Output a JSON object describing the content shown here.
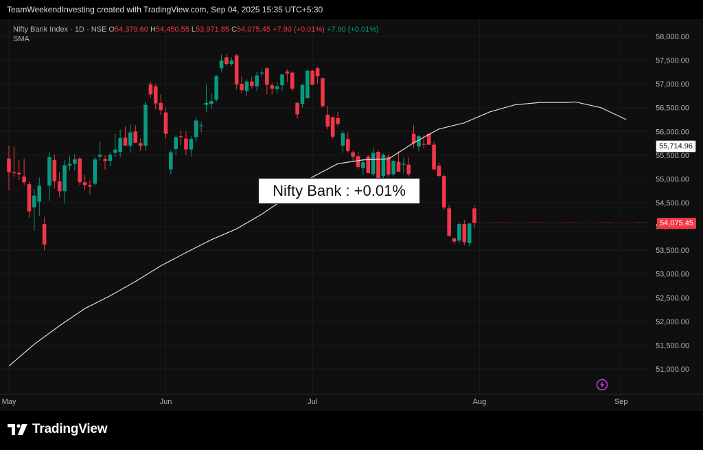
{
  "watermark": "TeamWeekendInvesting created with TradingView.com, Sep 04, 2025 15:35 UTC+5:30",
  "legend": {
    "symbol": "Nifty Bank Index · 1D · NSE",
    "open_label": "O",
    "open": "54,379.60",
    "high_label": "H",
    "high": "54,450.55",
    "low_label": "L",
    "low": "53,971.85",
    "close_label": "C",
    "close": "54,075.45",
    "change": "+7.90 (+0.01%)",
    "indicator_change": "+7.90 (+0.01%)",
    "indicator": "SMA"
  },
  "annotation": "Nifty Bank : +0.01%",
  "sma_price_tag": "55,714.96",
  "last_price_tag": "54,075.45",
  "brand": "TradingView",
  "colors": {
    "up": "#089981",
    "down": "#f23645",
    "sma": "#e0e0e0",
    "background": "#0f0f0f"
  },
  "chart_data": {
    "type": "candlestick",
    "title": "Nifty Bank Index · 1D · NSE",
    "y_axis_side": "right",
    "ylim": [
      50600,
      58300
    ],
    "y_ticks": [
      "58,000.00",
      "57,500.00",
      "57,000.00",
      "56,500.00",
      "56,000.00",
      "55,500.00",
      "55,000.00",
      "54,500.00",
      "54,000.00",
      "53,500.00",
      "53,000.00",
      "52,500.00",
      "52,000.00",
      "51,500.00",
      "51,000.00"
    ],
    "y_tick_values": [
      58000,
      57500,
      57000,
      56500,
      56000,
      55500,
      55000,
      54500,
      54000,
      53500,
      53000,
      52500,
      52000,
      51500,
      51000
    ],
    "x_ticks": [
      "May",
      "Jun",
      "Jul",
      "Aug",
      "Sep"
    ],
    "x_tick_bar_index": [
      0,
      31,
      60,
      93,
      121
    ],
    "candles": [
      {
        "o": 55430,
        "h": 55700,
        "l": 54760,
        "c": 55140
      },
      {
        "o": 55140,
        "h": 55680,
        "l": 55040,
        "c": 55120
      },
      {
        "o": 55130,
        "h": 55400,
        "l": 54980,
        "c": 55100
      },
      {
        "o": 55050,
        "h": 55430,
        "l": 54870,
        "c": 54930
      },
      {
        "o": 54890,
        "h": 54950,
        "l": 54190,
        "c": 54320
      },
      {
        "o": 54400,
        "h": 54800,
        "l": 53910,
        "c": 54650
      },
      {
        "o": 54520,
        "h": 55030,
        "l": 54220,
        "c": 54860
      },
      {
        "o": 54050,
        "h": 54200,
        "l": 53500,
        "c": 53620
      },
      {
        "o": 54860,
        "h": 55560,
        "l": 54540,
        "c": 55460
      },
      {
        "o": 55400,
        "h": 55510,
        "l": 54800,
        "c": 54950
      },
      {
        "o": 54950,
        "h": 55150,
        "l": 54620,
        "c": 54740
      },
      {
        "o": 54740,
        "h": 55400,
        "l": 54480,
        "c": 55290
      },
      {
        "o": 55280,
        "h": 55480,
        "l": 55180,
        "c": 55320
      },
      {
        "o": 55320,
        "h": 55520,
        "l": 55180,
        "c": 55410
      },
      {
        "o": 55430,
        "h": 55460,
        "l": 54870,
        "c": 54930
      },
      {
        "o": 54930,
        "h": 55080,
        "l": 54760,
        "c": 54870
      },
      {
        "o": 54870,
        "h": 54980,
        "l": 54680,
        "c": 54840
      },
      {
        "o": 54900,
        "h": 55470,
        "l": 54860,
        "c": 55410
      },
      {
        "o": 55470,
        "h": 55780,
        "l": 55390,
        "c": 55510
      },
      {
        "o": 55420,
        "h": 55500,
        "l": 55190,
        "c": 55380
      },
      {
        "o": 55380,
        "h": 55560,
        "l": 55270,
        "c": 55510
      },
      {
        "o": 55550,
        "h": 55960,
        "l": 55460,
        "c": 55620
      },
      {
        "o": 55570,
        "h": 56040,
        "l": 55450,
        "c": 55860
      },
      {
        "o": 55870,
        "h": 56100,
        "l": 55710,
        "c": 55700
      },
      {
        "o": 55700,
        "h": 56150,
        "l": 55550,
        "c": 55980
      },
      {
        "o": 56000,
        "h": 56130,
        "l": 55830,
        "c": 55760
      },
      {
        "o": 55750,
        "h": 55850,
        "l": 55590,
        "c": 55700
      },
      {
        "o": 55700,
        "h": 56630,
        "l": 55600,
        "c": 56560
      },
      {
        "o": 56990,
        "h": 57050,
        "l": 56700,
        "c": 56780
      },
      {
        "o": 56950,
        "h": 57000,
        "l": 56460,
        "c": 56590
      },
      {
        "o": 56600,
        "h": 56780,
        "l": 56350,
        "c": 56450
      },
      {
        "o": 56400,
        "h": 56500,
        "l": 55850,
        "c": 55950
      },
      {
        "o": 55200,
        "h": 55600,
        "l": 55100,
        "c": 55560
      },
      {
        "o": 55630,
        "h": 55920,
        "l": 55500,
        "c": 55880
      },
      {
        "o": 55900,
        "h": 56010,
        "l": 55710,
        "c": 55880
      },
      {
        "o": 55850,
        "h": 56000,
        "l": 55500,
        "c": 55620
      },
      {
        "o": 55620,
        "h": 55900,
        "l": 55470,
        "c": 55840
      },
      {
        "o": 55880,
        "h": 56300,
        "l": 55780,
        "c": 56230
      },
      {
        "o": 56120,
        "h": 56200,
        "l": 55980,
        "c": 56130
      },
      {
        "o": 56560,
        "h": 56990,
        "l": 56400,
        "c": 56600
      },
      {
        "o": 56580,
        "h": 56800,
        "l": 56470,
        "c": 56640
      },
      {
        "o": 56670,
        "h": 57190,
        "l": 56610,
        "c": 57160
      },
      {
        "o": 57330,
        "h": 57620,
        "l": 57260,
        "c": 57490
      },
      {
        "o": 57560,
        "h": 57620,
        "l": 57380,
        "c": 57420
      },
      {
        "o": 57420,
        "h": 57560,
        "l": 57380,
        "c": 57490
      },
      {
        "o": 57600,
        "h": 57630,
        "l": 56880,
        "c": 56990
      },
      {
        "o": 57000,
        "h": 57160,
        "l": 56790,
        "c": 56870
      },
      {
        "o": 56850,
        "h": 57100,
        "l": 56750,
        "c": 57050
      },
      {
        "o": 57050,
        "h": 57150,
        "l": 56900,
        "c": 56960
      },
      {
        "o": 56950,
        "h": 57250,
        "l": 56850,
        "c": 57180
      },
      {
        "o": 57220,
        "h": 57310,
        "l": 57150,
        "c": 57240
      },
      {
        "o": 57330,
        "h": 57360,
        "l": 56780,
        "c": 56980
      },
      {
        "o": 56970,
        "h": 57020,
        "l": 56770,
        "c": 56900
      },
      {
        "o": 56890,
        "h": 57050,
        "l": 56810,
        "c": 56950
      },
      {
        "o": 56970,
        "h": 57180,
        "l": 56850,
        "c": 57200
      },
      {
        "o": 57260,
        "h": 57310,
        "l": 57040,
        "c": 57220
      },
      {
        "o": 57240,
        "h": 57260,
        "l": 56850,
        "c": 56900
      },
      {
        "o": 56600,
        "h": 56620,
        "l": 56270,
        "c": 56360
      },
      {
        "o": 56580,
        "h": 56990,
        "l": 56500,
        "c": 56980
      },
      {
        "o": 56700,
        "h": 57300,
        "l": 56680,
        "c": 57280
      },
      {
        "o": 57280,
        "h": 57300,
        "l": 56970,
        "c": 56980
      },
      {
        "o": 57330,
        "h": 57360,
        "l": 57000,
        "c": 57160
      },
      {
        "o": 57120,
        "h": 57130,
        "l": 56510,
        "c": 56530
      },
      {
        "o": 56350,
        "h": 56540,
        "l": 56040,
        "c": 56100
      },
      {
        "o": 56300,
        "h": 56310,
        "l": 55850,
        "c": 55890
      },
      {
        "o": 56280,
        "h": 56410,
        "l": 56110,
        "c": 56160
      },
      {
        "o": 55700,
        "h": 56020,
        "l": 55550,
        "c": 55960
      },
      {
        "o": 55840,
        "h": 55980,
        "l": 55560,
        "c": 55590
      },
      {
        "o": 55560,
        "h": 55600,
        "l": 55360,
        "c": 55470
      },
      {
        "o": 55480,
        "h": 55560,
        "l": 55200,
        "c": 55250
      },
      {
        "o": 55230,
        "h": 55420,
        "l": 55090,
        "c": 55350
      },
      {
        "o": 55470,
        "h": 55500,
        "l": 55120,
        "c": 55120
      },
      {
        "o": 55100,
        "h": 55660,
        "l": 55050,
        "c": 55550
      },
      {
        "o": 55570,
        "h": 55610,
        "l": 54980,
        "c": 55010
      },
      {
        "o": 55060,
        "h": 55540,
        "l": 54940,
        "c": 55510
      },
      {
        "o": 55470,
        "h": 55530,
        "l": 55040,
        "c": 55090
      },
      {
        "o": 55100,
        "h": 55390,
        "l": 55050,
        "c": 55380
      },
      {
        "o": 55360,
        "h": 55580,
        "l": 55200,
        "c": 55150
      },
      {
        "o": 55300,
        "h": 55440,
        "l": 55120,
        "c": 55320
      },
      {
        "o": 55300,
        "h": 55450,
        "l": 55050,
        "c": 55100
      },
      {
        "o": 55950,
        "h": 56140,
        "l": 55650,
        "c": 55750
      },
      {
        "o": 55680,
        "h": 55920,
        "l": 55580,
        "c": 55900
      },
      {
        "o": 55740,
        "h": 55920,
        "l": 55640,
        "c": 55720
      },
      {
        "o": 55950,
        "h": 55960,
        "l": 55730,
        "c": 55720
      },
      {
        "o": 55720,
        "h": 55780,
        "l": 55220,
        "c": 55200
      },
      {
        "o": 55280,
        "h": 55350,
        "l": 55040,
        "c": 55060
      },
      {
        "o": 55060,
        "h": 55100,
        "l": 54350,
        "c": 54400
      },
      {
        "o": 54380,
        "h": 54450,
        "l": 53790,
        "c": 53800
      },
      {
        "o": 53750,
        "h": 53760,
        "l": 53620,
        "c": 53680
      },
      {
        "o": 53700,
        "h": 54090,
        "l": 53640,
        "c": 54050
      },
      {
        "o": 54050,
        "h": 54140,
        "l": 53600,
        "c": 53670
      },
      {
        "o": 53650,
        "h": 54070,
        "l": 53580,
        "c": 54060
      },
      {
        "o": 54379.6,
        "h": 54450.55,
        "l": 53971.85,
        "c": 54075.45
      }
    ],
    "series": [
      {
        "name": "SMA",
        "x_bar_index": [
          0,
          5,
          10,
          15,
          20,
          25,
          30,
          35,
          40,
          45,
          50,
          55,
          60,
          65,
          70,
          75,
          80,
          85,
          90,
          95,
          100,
          105,
          110,
          112,
          117,
          122
        ],
        "values": [
          51060,
          51520,
          51910,
          52270,
          52540,
          52840,
          53170,
          53450,
          53720,
          53950,
          54260,
          54620,
          55040,
          55320,
          55400,
          55420,
          55760,
          56050,
          56180,
          56410,
          56560,
          56610,
          56610,
          56620,
          56500,
          56250
        ]
      }
    ],
    "sma_last": 55714.96
  }
}
